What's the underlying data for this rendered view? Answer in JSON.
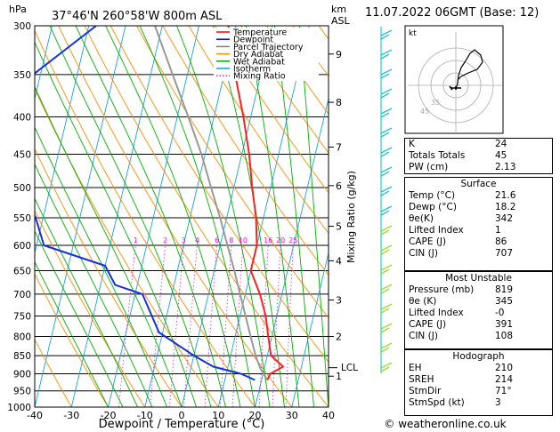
{
  "header": {
    "location": "37°46'N  260°58'W  800m  ASL",
    "datetime": "11.07.2022  06GMT  (Base: 12)",
    "hpa_unit": "hPa",
    "km_unit": "km",
    "asl_unit": "ASL"
  },
  "footer": {
    "credit": "© weatheronline.co.uk"
  },
  "hodograph_panel": {
    "unit_label": "kt"
  },
  "chart_data": {
    "type": "line",
    "xlabel": "Dewpoint / Temperature (°C)",
    "ylabel": "hPa",
    "right_label": "Mixing Ratio (g/kg)",
    "xlim": [
      -40,
      40
    ],
    "ylim": [
      1000,
      300
    ],
    "x_ticks": [
      -40,
      -30,
      -20,
      -10,
      0,
      10,
      20,
      30,
      40
    ],
    "pressure_levels": [
      300,
      350,
      400,
      450,
      500,
      550,
      600,
      650,
      700,
      750,
      800,
      850,
      900,
      950,
      1000
    ],
    "km_ticks": [
      {
        "label": "9",
        "p": 328
      },
      {
        "label": "8",
        "p": 382
      },
      {
        "label": "7",
        "p": 440
      },
      {
        "label": "6",
        "p": 497
      },
      {
        "label": "5",
        "p": 565
      },
      {
        "label": "4",
        "p": 630
      },
      {
        "label": "3",
        "p": 713
      },
      {
        "label": "2",
        "p": 800
      },
      {
        "label": "1",
        "p": 907
      }
    ],
    "lcl_label": "LCL",
    "lcl_p": 883,
    "mixing_ratio_labels": [
      "1",
      "2",
      "3",
      "4",
      "6",
      "8",
      "10",
      "16",
      "20",
      "25"
    ],
    "legend": [
      {
        "name": "Temperature",
        "color": "#ff0000",
        "style": "solid"
      },
      {
        "name": "Dewpoint",
        "color": "#0000ff",
        "style": "solid"
      },
      {
        "name": "Parcel Trajectory",
        "color": "#808080",
        "style": "solid"
      },
      {
        "name": "Dry Adiabat",
        "color": "#ff8c00",
        "style": "solid"
      },
      {
        "name": "Wet Adiabat",
        "color": "#00b000",
        "style": "solid"
      },
      {
        "name": "Isotherm",
        "color": "#00a0e0",
        "style": "solid"
      },
      {
        "name": "Mixing Ratio",
        "color": "#ff00ff",
        "style": "dotted"
      }
    ],
    "temperature": [
      {
        "p": 300,
        "t": -12
      },
      {
        "p": 350,
        "t": -7
      },
      {
        "p": 400,
        "t": -2
      },
      {
        "p": 450,
        "t": 2
      },
      {
        "p": 500,
        "t": 5
      },
      {
        "p": 550,
        "t": 8
      },
      {
        "p": 600,
        "t": 10
      },
      {
        "p": 650,
        "t": 10
      },
      {
        "p": 700,
        "t": 14
      },
      {
        "p": 750,
        "t": 17
      },
      {
        "p": 800,
        "t": 19
      },
      {
        "p": 850,
        "t": 21
      },
      {
        "p": 880,
        "t": 25
      },
      {
        "p": 900,
        "t": 22
      },
      {
        "p": 918,
        "t": 21.6
      }
    ],
    "dewpoint": [
      {
        "p": 300,
        "t": -48
      },
      {
        "p": 350,
        "t": -62
      },
      {
        "p": 400,
        "t": -67
      },
      {
        "p": 415,
        "t": -62
      },
      {
        "p": 450,
        "t": -62
      },
      {
        "p": 500,
        "t": -58
      },
      {
        "p": 550,
        "t": -52
      },
      {
        "p": 600,
        "t": -48
      },
      {
        "p": 640,
        "t": -30
      },
      {
        "p": 680,
        "t": -26
      },
      {
        "p": 700,
        "t": -18
      },
      {
        "p": 750,
        "t": -14
      },
      {
        "p": 790,
        "t": -11
      },
      {
        "p": 850,
        "t": 0
      },
      {
        "p": 880,
        "t": 6
      },
      {
        "p": 900,
        "t": 14
      },
      {
        "p": 918,
        "t": 18.2
      }
    ],
    "parcel": [
      {
        "p": 918,
        "t": 21.6
      },
      {
        "p": 883,
        "t": 18.8
      },
      {
        "p": 850,
        "t": 16.8
      },
      {
        "p": 800,
        "t": 14.2
      },
      {
        "p": 750,
        "t": 11.5
      },
      {
        "p": 700,
        "t": 8.6
      },
      {
        "p": 650,
        "t": 5.5
      },
      {
        "p": 600,
        "t": 2.0
      },
      {
        "p": 550,
        "t": -1.8
      },
      {
        "p": 500,
        "t": -6.2
      },
      {
        "p": 450,
        "t": -11.0
      },
      {
        "p": 400,
        "t": -17.0
      },
      {
        "p": 350,
        "t": -24.0
      },
      {
        "p": 300,
        "t": -32.0
      }
    ],
    "hodograph_ring_labels": [
      "45",
      "35"
    ]
  },
  "indices": {
    "top": [
      {
        "label": "K",
        "value": "24"
      },
      {
        "label": "Totals Totals",
        "value": "45"
      },
      {
        "label": "PW (cm)",
        "value": "2.13"
      }
    ],
    "surface": {
      "title": "Surface",
      "rows": [
        {
          "label": "Temp (°C)",
          "value": "21.6"
        },
        {
          "label": "Dewp (°C)",
          "value": "18.2"
        },
        {
          "label": "θe(K)",
          "value": "342"
        },
        {
          "label": "Lifted Index",
          "value": "1"
        },
        {
          "label": "CAPE (J)",
          "value": "86"
        },
        {
          "label": "CIN (J)",
          "value": "707"
        }
      ]
    },
    "most_unstable": {
      "title": "Most Unstable",
      "rows": [
        {
          "label": "Pressure (mb)",
          "value": "819"
        },
        {
          "label": "θe (K)",
          "value": "345"
        },
        {
          "label": "Lifted Index",
          "value": "-0"
        },
        {
          "label": "CAPE (J)",
          "value": "391"
        },
        {
          "label": "CIN (J)",
          "value": "108"
        }
      ]
    },
    "hodograph": {
      "title": "Hodograph",
      "rows": [
        {
          "label": "EH",
          "value": "210"
        },
        {
          "label": "SREH",
          "value": "214"
        },
        {
          "label": "StmDir",
          "value": "71°"
        },
        {
          "label": "StmSpd (kt)",
          "value": "3"
        }
      ]
    }
  }
}
